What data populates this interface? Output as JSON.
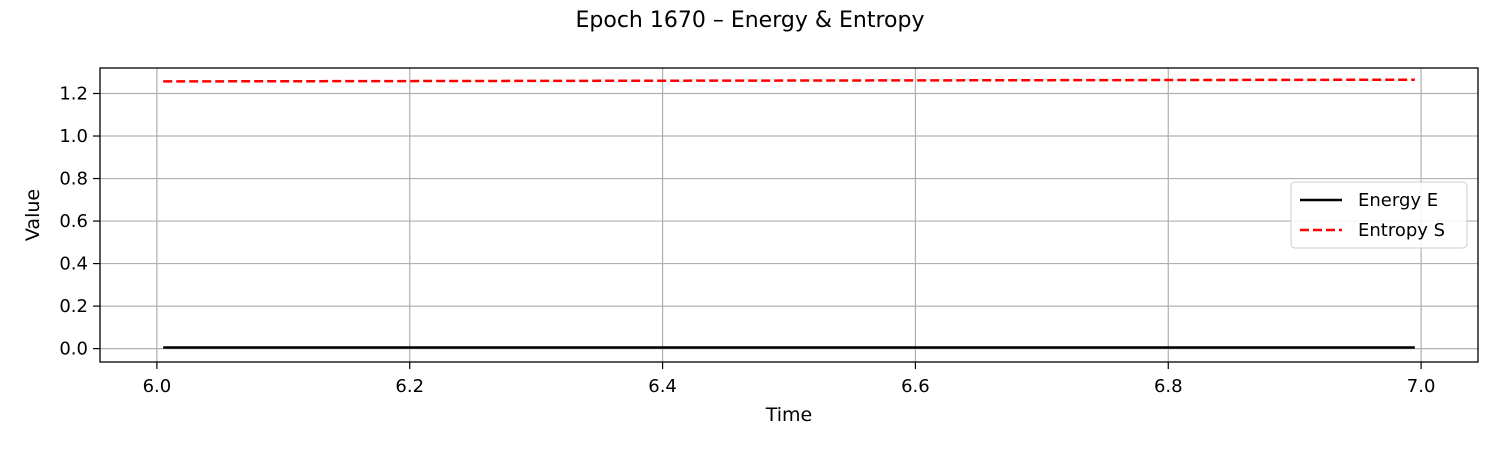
{
  "chart_data": {
    "type": "line",
    "title": "Epoch 1670 – Energy & Entropy",
    "xlabel": "Time",
    "ylabel": "Value",
    "xlim": [
      5.955,
      7.045
    ],
    "ylim": [
      -0.063,
      1.32
    ],
    "xticks": [
      6.0,
      6.2,
      6.4,
      6.6,
      6.8,
      7.0
    ],
    "xtick_labels": [
      "6.0",
      "6.2",
      "6.4",
      "6.6",
      "6.8",
      "7.0"
    ],
    "yticks": [
      0.0,
      0.2,
      0.4,
      0.6,
      0.8,
      1.0,
      1.2
    ],
    "ytick_labels": [
      "0.0",
      "0.2",
      "0.4",
      "0.6",
      "0.8",
      "1.0",
      "1.2"
    ],
    "grid": true,
    "legend_position": "center-right",
    "series": [
      {
        "name": "Energy E",
        "color": "#000000",
        "style": "solid",
        "x": [
          6.005,
          6.995
        ],
        "y": [
          0.005,
          0.005
        ]
      },
      {
        "name": "Entropy S",
        "color": "#ff0000",
        "style": "dashed",
        "x": [
          6.005,
          6.995
        ],
        "y": [
          1.257,
          1.265
        ]
      }
    ]
  }
}
